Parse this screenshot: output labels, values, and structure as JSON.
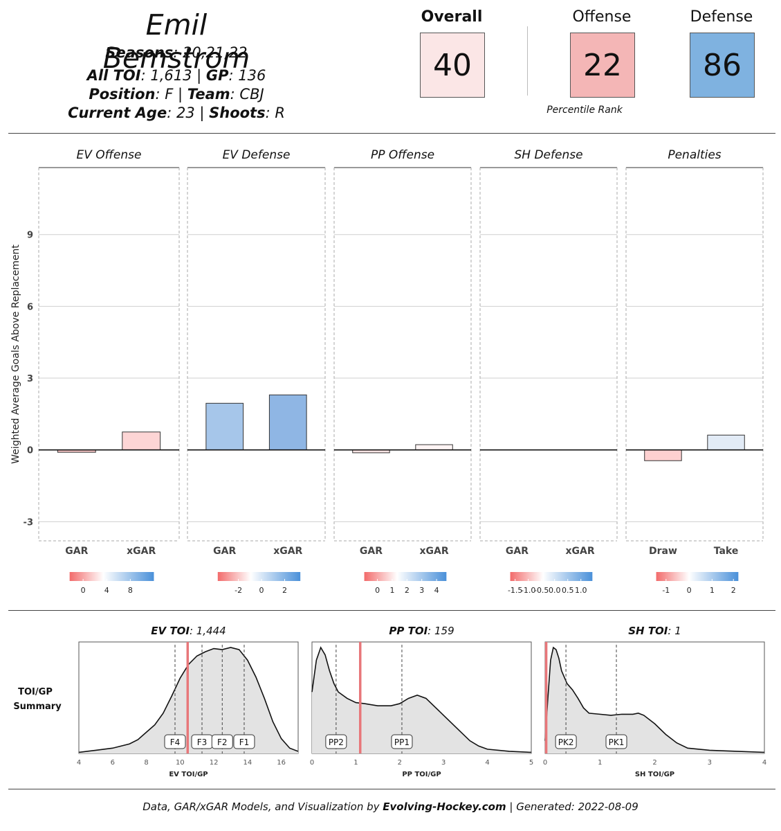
{
  "header": {
    "player_name": "Emil Bemstrom",
    "seasons_label": "Seasons",
    "seasons_value": ": 20,21,22",
    "toi_label": "All TOI",
    "toi_value": ": 1,613 | ",
    "gp_label": "GP",
    "gp_value": ": 136",
    "position_label": "Position",
    "position_value": ": F | ",
    "team_label": "Team",
    "team_value": ": CBJ",
    "age_label": "Current Age",
    "age_value": ": 23 | ",
    "shoots_label": "Shoots",
    "shoots_value": ": R"
  },
  "ranks": {
    "overall": {
      "label": "Overall",
      "value": "40",
      "color": "#fbe6e6"
    },
    "offense": {
      "label": "Offense",
      "value": "22",
      "color": "#f4b6b6"
    },
    "defense": {
      "label": "Defense",
      "value": "86",
      "color": "#7fb2e0"
    },
    "caption": "Percentile Rank"
  },
  "chart_data": [
    {
      "type": "bar",
      "ylabel": "Weighted Average Goals Above Replacement",
      "ylim": [
        -3.8,
        11.8
      ],
      "yticks": [
        -3,
        0,
        3,
        6,
        9
      ],
      "grid": true,
      "panels": [
        {
          "title": "EV Offense",
          "categories": [
            "GAR",
            "xGAR"
          ],
          "values": [
            -0.1,
            0.75
          ],
          "colors": [
            "#f7c6c6",
            "#fdd5d5"
          ],
          "legend": {
            "ticks": [
              "0",
              "4",
              "8"
            ],
            "tick_pos": [
              0.16,
              0.44,
              0.72
            ]
          }
        },
        {
          "title": "EV Defense",
          "categories": [
            "GAR",
            "xGAR"
          ],
          "values": [
            1.95,
            2.3
          ],
          "colors": [
            "#a6c6ea",
            "#8fb6e4"
          ],
          "legend": {
            "ticks": [
              "-2",
              "0",
              "2"
            ],
            "tick_pos": [
              0.25,
              0.53,
              0.81
            ]
          }
        },
        {
          "title": "PP Offense",
          "categories": [
            "GAR",
            "xGAR"
          ],
          "values": [
            -0.12,
            0.22
          ],
          "colors": [
            "#fde4e4",
            "#fff4f4"
          ],
          "legend": {
            "ticks": [
              "0",
              "1",
              "2",
              "3",
              "4"
            ],
            "tick_pos": [
              0.16,
              0.34,
              0.52,
              0.7,
              0.88
            ]
          }
        },
        {
          "title": "SH Defense",
          "categories": [
            "GAR",
            "xGAR"
          ],
          "values": [
            0.0,
            0.0
          ],
          "colors": [
            "#ffffff",
            "#ffffff"
          ],
          "legend": {
            "ticks": [
              "-1.5",
              "-1.0",
              "-0.5",
              "0.0",
              "0.5",
              "1.0"
            ],
            "tick_pos": [
              0.06,
              0.22,
              0.38,
              0.54,
              0.7,
              0.86
            ]
          }
        },
        {
          "title": "Penalties",
          "categories": [
            "Draw",
            "Take"
          ],
          "values": [
            -0.45,
            0.62
          ],
          "colors": [
            "#fdd0d0",
            "#e2ebf6"
          ],
          "legend": {
            "ticks": [
              "-1",
              "0",
              "1",
              "2"
            ],
            "tick_pos": [
              0.12,
              0.4,
              0.68,
              0.94
            ]
          }
        }
      ]
    },
    {
      "type": "area",
      "row_label": "TOI/GP Summary",
      "panels": [
        {
          "title_label": "EV TOI",
          "title_value": ": 1,444",
          "xlabel": "EV TOI/GP",
          "xlim": [
            4,
            17
          ],
          "xticks": [
            4,
            6,
            8,
            10,
            12,
            14,
            16
          ],
          "player_value": 10.45,
          "markers": [
            {
              "label": "F4",
              "x": 9.7
            },
            {
              "label": "F3",
              "x": 11.3
            },
            {
              "label": "F2",
              "x": 12.5
            },
            {
              "label": "F1",
              "x": 13.8
            }
          ],
          "density_x": [
            4,
            5,
            6,
            7,
            7.5,
            8,
            8.5,
            9,
            9.5,
            10,
            10.5,
            11,
            11.5,
            12,
            12.5,
            13,
            13.5,
            14,
            14.5,
            15,
            15.5,
            16,
            16.5,
            17
          ],
          "density_y": [
            0.01,
            0.03,
            0.05,
            0.09,
            0.13,
            0.2,
            0.27,
            0.38,
            0.54,
            0.71,
            0.84,
            0.92,
            0.96,
            0.99,
            0.98,
            1.0,
            0.98,
            0.88,
            0.72,
            0.52,
            0.3,
            0.14,
            0.05,
            0.02
          ]
        },
        {
          "title_label": "PP TOI",
          "title_value": ": 159",
          "xlabel": "PP TOI/GP",
          "xlim": [
            0,
            5
          ],
          "xticks": [
            0,
            1,
            2,
            3,
            4,
            5
          ],
          "player_value": 1.1,
          "markers": [
            {
              "label": "PP2",
              "x": 0.55
            },
            {
              "label": "PP1",
              "x": 2.05
            }
          ],
          "density_x": [
            0,
            0.1,
            0.2,
            0.3,
            0.4,
            0.5,
            0.6,
            0.8,
            1.0,
            1.2,
            1.5,
            1.8,
            2.0,
            2.2,
            2.4,
            2.6,
            2.8,
            3.0,
            3.3,
            3.6,
            3.8,
            4.0,
            4.5,
            5.0
          ],
          "density_y": [
            0.58,
            0.88,
            1.0,
            0.93,
            0.78,
            0.66,
            0.58,
            0.52,
            0.48,
            0.47,
            0.45,
            0.45,
            0.47,
            0.52,
            0.55,
            0.52,
            0.44,
            0.36,
            0.24,
            0.12,
            0.07,
            0.04,
            0.02,
            0.01
          ]
        },
        {
          "title_label": "SH TOI",
          "title_value": ": 1",
          "xlabel": "SH TOI/GP",
          "xlim": [
            0,
            4
          ],
          "xticks": [
            0,
            1,
            2,
            3,
            4
          ],
          "player_value": 0.02,
          "markers": [
            {
              "label": "PK2",
              "x": 0.38
            },
            {
              "label": "PK1",
              "x": 1.3
            }
          ],
          "density_x": [
            0,
            0.05,
            0.1,
            0.15,
            0.2,
            0.25,
            0.3,
            0.4,
            0.5,
            0.6,
            0.7,
            0.8,
            1.0,
            1.2,
            1.4,
            1.6,
            1.7,
            1.8,
            2.0,
            2.2,
            2.4,
            2.6,
            3.0,
            3.5,
            4.0
          ],
          "density_y": [
            0.12,
            0.52,
            0.88,
            1.0,
            0.98,
            0.9,
            0.78,
            0.66,
            0.6,
            0.52,
            0.43,
            0.38,
            0.37,
            0.36,
            0.37,
            0.37,
            0.38,
            0.36,
            0.28,
            0.18,
            0.1,
            0.05,
            0.03,
            0.02,
            0.01
          ]
        }
      ]
    }
  ],
  "footer": {
    "prefix": "Data, GAR/xGAR Models, and Visualization by ",
    "site": "Evolving-Hockey.com",
    "suffix": "  | Generated:  2022-08-09"
  }
}
